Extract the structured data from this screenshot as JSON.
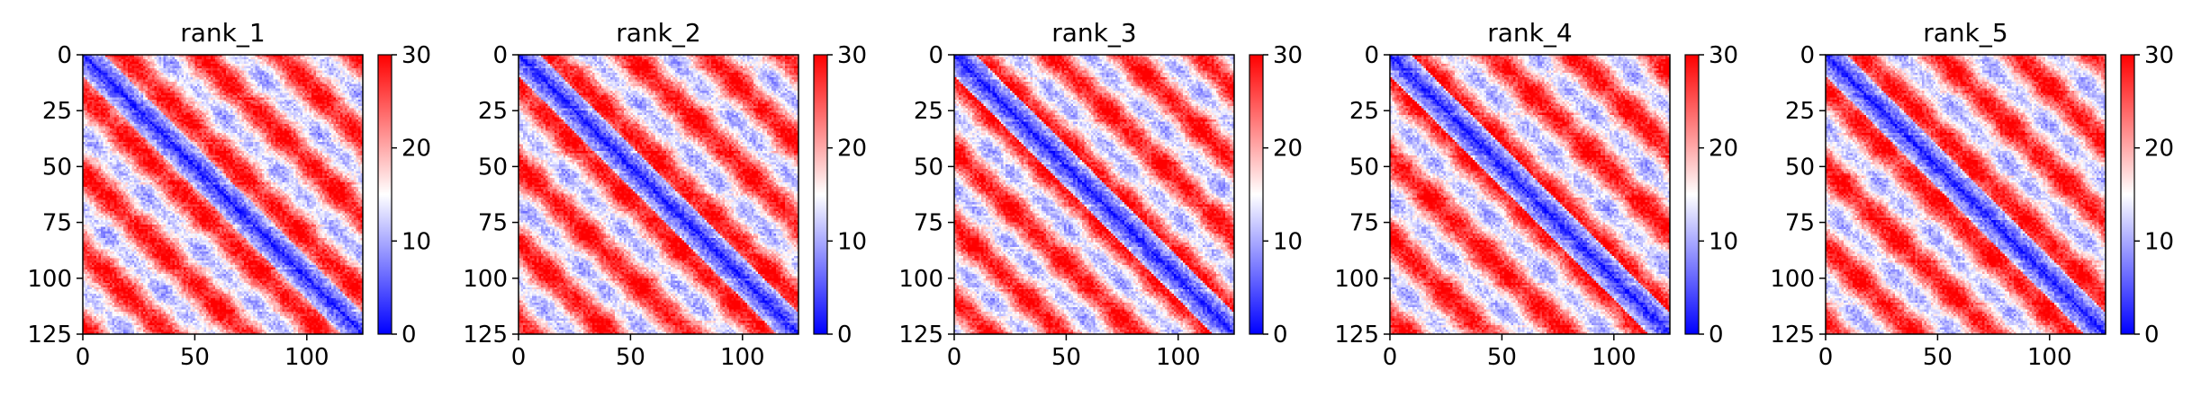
{
  "chart_data": [
    {
      "type": "heatmap",
      "title": "rank_1",
      "xlabel": "",
      "ylabel": "",
      "x_ticks": [
        "0",
        "50",
        "100"
      ],
      "y_ticks": [
        "0",
        "25",
        "50",
        "75",
        "100",
        "125"
      ],
      "matrix_size": 125,
      "xlim": [
        0,
        125
      ],
      "ylim": [
        125,
        0
      ],
      "colorbar": {
        "ticks": [
          "0",
          "10",
          "20",
          "30"
        ],
        "range": [
          0,
          30
        ],
        "colormap": "bwr",
        "low_color": "#0000ff",
        "mid_color": "#ffffff",
        "high_color": "#ff0000"
      },
      "pattern": {
        "period": 35,
        "phase": 0,
        "seed": 11
      }
    },
    {
      "type": "heatmap",
      "title": "rank_2",
      "xlabel": "",
      "ylabel": "",
      "x_ticks": [
        "0",
        "50",
        "100"
      ],
      "y_ticks": [
        "0",
        "25",
        "50",
        "75",
        "100",
        "125"
      ],
      "matrix_size": 125,
      "xlim": [
        0,
        125
      ],
      "ylim": [
        125,
        0
      ],
      "colorbar": {
        "ticks": [
          "0",
          "10",
          "20",
          "30"
        ],
        "range": [
          0,
          30
        ],
        "colormap": "bwr",
        "low_color": "#0000ff",
        "mid_color": "#ffffff",
        "high_color": "#ff0000"
      },
      "pattern": {
        "period": 35,
        "phase": 3,
        "seed": 23
      }
    },
    {
      "type": "heatmap",
      "title": "rank_3",
      "xlabel": "",
      "ylabel": "",
      "x_ticks": [
        "0",
        "50",
        "100"
      ],
      "y_ticks": [
        "0",
        "25",
        "50",
        "75",
        "100",
        "125"
      ],
      "matrix_size": 125,
      "xlim": [
        0,
        125
      ],
      "ylim": [
        125,
        0
      ],
      "colorbar": {
        "ticks": [
          "0",
          "10",
          "20",
          "30"
        ],
        "range": [
          0,
          30
        ],
        "colormap": "bwr",
        "low_color": "#0000ff",
        "mid_color": "#ffffff",
        "high_color": "#ff0000"
      },
      "pattern": {
        "period": 33,
        "phase": 6,
        "seed": 37
      }
    },
    {
      "type": "heatmap",
      "title": "rank_4",
      "xlabel": "",
      "ylabel": "",
      "x_ticks": [
        "0",
        "50",
        "100"
      ],
      "y_ticks": [
        "0",
        "25",
        "50",
        "75",
        "100",
        "125"
      ],
      "matrix_size": 125,
      "xlim": [
        0,
        125
      ],
      "ylim": [
        125,
        0
      ],
      "colorbar": {
        "ticks": [
          "0",
          "10",
          "20",
          "30"
        ],
        "range": [
          0,
          30
        ],
        "colormap": "bwr",
        "low_color": "#0000ff",
        "mid_color": "#ffffff",
        "high_color": "#ff0000"
      },
      "pattern": {
        "period": 36,
        "phase": 8,
        "seed": 41
      }
    },
    {
      "type": "heatmap",
      "title": "rank_5",
      "xlabel": "",
      "ylabel": "",
      "x_ticks": [
        "0",
        "50",
        "100"
      ],
      "y_ticks": [
        "0",
        "25",
        "50",
        "75",
        "100",
        "125"
      ],
      "matrix_size": 125,
      "xlim": [
        0,
        125
      ],
      "ylim": [
        125,
        0
      ],
      "colorbar": {
        "ticks": [
          "0",
          "10",
          "20",
          "30"
        ],
        "range": [
          0,
          30
        ],
        "colormap": "bwr",
        "low_color": "#0000ff",
        "mid_color": "#ffffff",
        "high_color": "#ff0000"
      },
      "pattern": {
        "period": 35,
        "phase": 2,
        "seed": 53
      }
    }
  ]
}
